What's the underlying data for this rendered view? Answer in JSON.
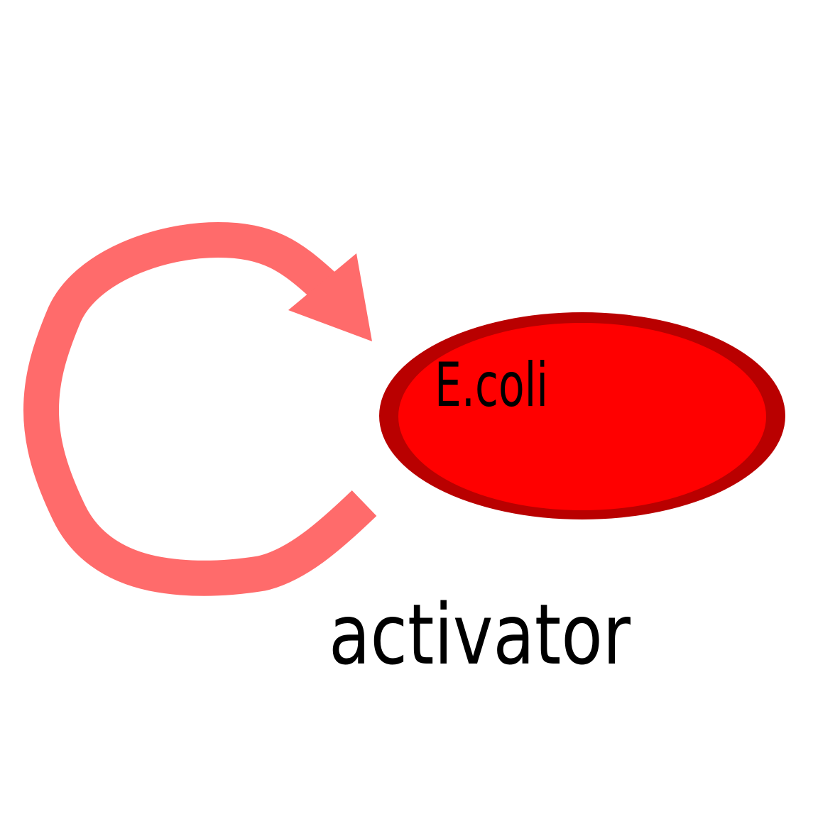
{
  "diagram": {
    "cell_label": "E.coli",
    "caption": "activator"
  },
  "colors": {
    "background": "#ffffff",
    "arrow": "#ff6b6b",
    "cell_fill": "#ff0000",
    "cell_outline": "#b90000",
    "text": "#000000"
  }
}
